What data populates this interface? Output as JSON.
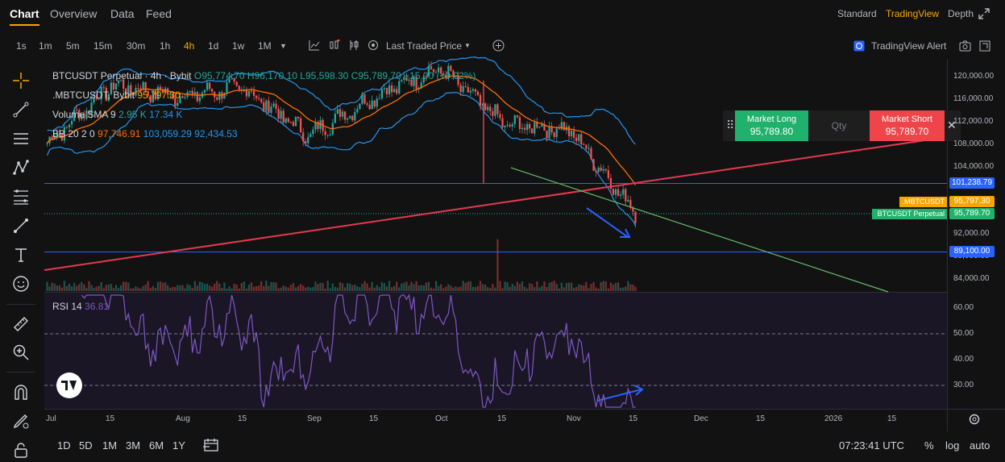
{
  "nav": {
    "tabs": [
      "Chart",
      "Overview",
      "Data",
      "Feed"
    ],
    "active_tab": "Chart",
    "right": [
      "Standard",
      "TradingView",
      "Depth"
    ],
    "right_active": "TradingView"
  },
  "toolbar": {
    "timeframes": [
      "1s",
      "1m",
      "5m",
      "15m",
      "30m",
      "1h",
      "4h",
      "1d",
      "1w",
      "1M"
    ],
    "active_timeframe": "4h",
    "price_source": "Last Traded Price",
    "alert_label": "TradingView Alert"
  },
  "legend": {
    "symbol": "BTCUSDT Perpetual · 4h · Bybit",
    "ohlc": "O95,774.70  H96,170.10  L95,598.30  C95,789.70",
    "change": "+15.00 (+0.02%)",
    "index_symbol": ".MBTCUSDT, Bybit",
    "index_value": "95,797.30",
    "volume_label": "Volume SMA 9",
    "volume_v1": "2.95 K",
    "volume_v2": "17.34 K",
    "bb_label": "BB 20 2 0",
    "bb_basis": "97,746.91",
    "bb_upper": "103,059.29",
    "bb_lower": "92,434.53",
    "rsi_label": "RSI 14",
    "rsi_value": "36.81"
  },
  "order": {
    "long_label": "Market Long",
    "long_price": "95,789.80",
    "qty_placeholder": "Qty",
    "short_label": "Market Short",
    "short_price": "95,789.70"
  },
  "price_axis": [
    "120,000.00",
    "116,000.00",
    "112,000.00",
    "108,000.00",
    "104,000.00",
    "100,000.00",
    "96,000.00",
    "92,000.00",
    "88,000.00",
    "84,000.00"
  ],
  "price_labels": {
    "line_upper": "101,238.79",
    "index_tag": ".MBTCUSDT",
    "index_price": "95,797.30",
    "symbol_tag": "BTCUSDT Perpetual",
    "last_price": "95,789.70",
    "line_lower": "89,100.00"
  },
  "rsi_axis": [
    "60.00",
    "50.00",
    "40.00",
    "30.00"
  ],
  "time_axis": [
    "Jul",
    "15",
    "Aug",
    "15",
    "Sep",
    "15",
    "Oct",
    "15",
    "Nov",
    "15",
    "Dec",
    "15",
    "2026",
    "15"
  ],
  "bottom": {
    "ranges": [
      "1D",
      "5D",
      "1M",
      "3M",
      "6M",
      "1Y"
    ],
    "clock": "07:23:41 UTC",
    "percent": "%",
    "log": "log",
    "auto": "auto"
  },
  "colors": {
    "accent": "#f7a600",
    "up": "#26a69a",
    "down": "#ef5350",
    "blue_line": "#2962ff",
    "red_trend": "#e53950",
    "green_trend": "#66bb6a",
    "bb": "#2196f3",
    "rsi": "#7e57c2"
  },
  "chart_data": {
    "type": "line",
    "title": "BTCUSDT Perpetual · 4h · Bybit",
    "x": [
      "Jul",
      "15",
      "Aug",
      "15",
      "Sep",
      "15",
      "Oct",
      "15",
      "Nov",
      "15"
    ],
    "series": [
      {
        "name": "BTCUSDT Perpetual",
        "values": [
          108200,
          118500,
          116500,
          118000,
          109500,
          116500,
          121500,
          111500,
          110500,
          95790
        ]
      }
    ],
    "ylim": [
      82000,
      122000
    ],
    "annotations": [
      "101,238.79",
      "89,100.00"
    ]
  }
}
